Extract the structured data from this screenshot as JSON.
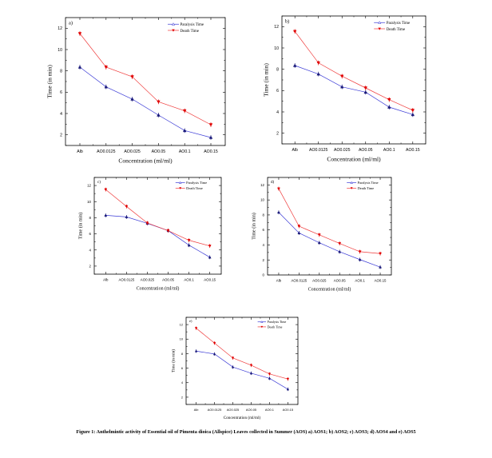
{
  "figure": {
    "caption": "Figure 1: Anthelmintic activity of Essential oil of Pimenta dioica (Allspice) Leaves collected in Summer (AOS) a) AOS1; b) AOS2; c) AOS3; d) AOS4 and e) AOS5"
  },
  "colors": {
    "paralysis": "#3b3bd6",
    "paralysis_marker": "#1a1a7a",
    "death": "#ef3b3b",
    "death_marker": "#e00000",
    "axis": "#000000"
  },
  "chart_data": [
    {
      "id": "a",
      "panel_label": "a)",
      "type": "line",
      "categories": [
        "Alb",
        "AO0.0125",
        "AO0.025",
        "AO0.05",
        "AO0.1",
        "AO0.15"
      ],
      "series": [
        {
          "name": "Paralysis Time",
          "values": [
            8.35,
            6.5,
            5.35,
            3.85,
            2.4,
            1.75
          ]
        },
        {
          "name": "Death Time",
          "values": [
            11.5,
            8.35,
            7.45,
            5.1,
            4.25,
            2.95
          ]
        }
      ],
      "xlabel": "Concentration (ml/ml)",
      "ylabel": "Time (in min)",
      "ylim": [
        1,
        13
      ],
      "yticks": [
        2,
        4,
        6,
        8,
        10,
        12
      ],
      "legend": "top-right"
    },
    {
      "id": "b",
      "panel_label": "b)",
      "type": "line",
      "categories": [
        "Alb",
        "AO0.0125",
        "AO0.025",
        "AO0.05",
        "AO0.1",
        "AO0.15"
      ],
      "series": [
        {
          "name": "Paralysis Time",
          "values": [
            8.35,
            7.55,
            6.35,
            5.85,
            4.45,
            3.75
          ]
        },
        {
          "name": "Death Time",
          "values": [
            11.55,
            8.6,
            7.35,
            6.25,
            5.15,
            4.15
          ]
        }
      ],
      "xlabel": "Concentration (ml/ml)",
      "ylabel": "Time (in min)",
      "ylim": [
        1,
        13
      ],
      "yticks": [
        2,
        4,
        6,
        8,
        10,
        12
      ],
      "legend": "top-right"
    },
    {
      "id": "c",
      "panel_label": "c)",
      "type": "line",
      "categories": [
        "Alb",
        "AO0.0125",
        "AO0.025",
        "AO0.05",
        "AO0.1",
        "AO0.15"
      ],
      "series": [
        {
          "name": "Paralysis Time",
          "values": [
            8.3,
            8.1,
            7.3,
            6.4,
            4.6,
            3.1
          ]
        },
        {
          "name": "Death Time",
          "values": [
            11.5,
            9.4,
            7.35,
            6.4,
            5.2,
            4.5
          ]
        }
      ],
      "xlabel": "Concentration (ml/ml)",
      "ylabel": "Time (in min)",
      "ylim": [
        1,
        13
      ],
      "yticks": [
        2,
        4,
        6,
        8,
        10,
        12
      ],
      "legend": "top-right"
    },
    {
      "id": "d",
      "panel_label": "d)",
      "type": "line",
      "categories": [
        "Alb",
        "AO0.0125",
        "AO0.025",
        "AO0.05",
        "AO0.1",
        "AO0.15"
      ],
      "series": [
        {
          "name": "Paralysis Time",
          "values": [
            8.35,
            5.6,
            4.3,
            3.1,
            2.05,
            1.05
          ]
        },
        {
          "name": "Death Time",
          "values": [
            11.5,
            6.5,
            5.35,
            4.2,
            3.1,
            2.85
          ]
        }
      ],
      "xlabel": "Concentration (ml/ml)",
      "ylabel": "Time (in min)",
      "ylim": [
        0,
        13
      ],
      "yticks": [
        0,
        2,
        4,
        6,
        8,
        10,
        12
      ],
      "legend": "top-right"
    },
    {
      "id": "e",
      "panel_label": "e)",
      "type": "line",
      "categories": [
        "Alb",
        "AO0.0125",
        "AO0.025",
        "AO0.05",
        "AO0.1",
        "AO0.15"
      ],
      "series": [
        {
          "name": "Paralysis Time",
          "values": [
            8.35,
            7.95,
            6.15,
            5.3,
            4.6,
            3.1
          ]
        },
        {
          "name": "Death Time",
          "values": [
            11.5,
            9.45,
            7.4,
            6.4,
            5.2,
            4.5
          ]
        }
      ],
      "xlabel": "Concentration (ml/ml)",
      "ylabel": "Time (in min)",
      "ylim": [
        1,
        13
      ],
      "yticks": [
        2,
        4,
        6,
        8,
        10,
        12
      ],
      "legend": "top-right"
    }
  ]
}
